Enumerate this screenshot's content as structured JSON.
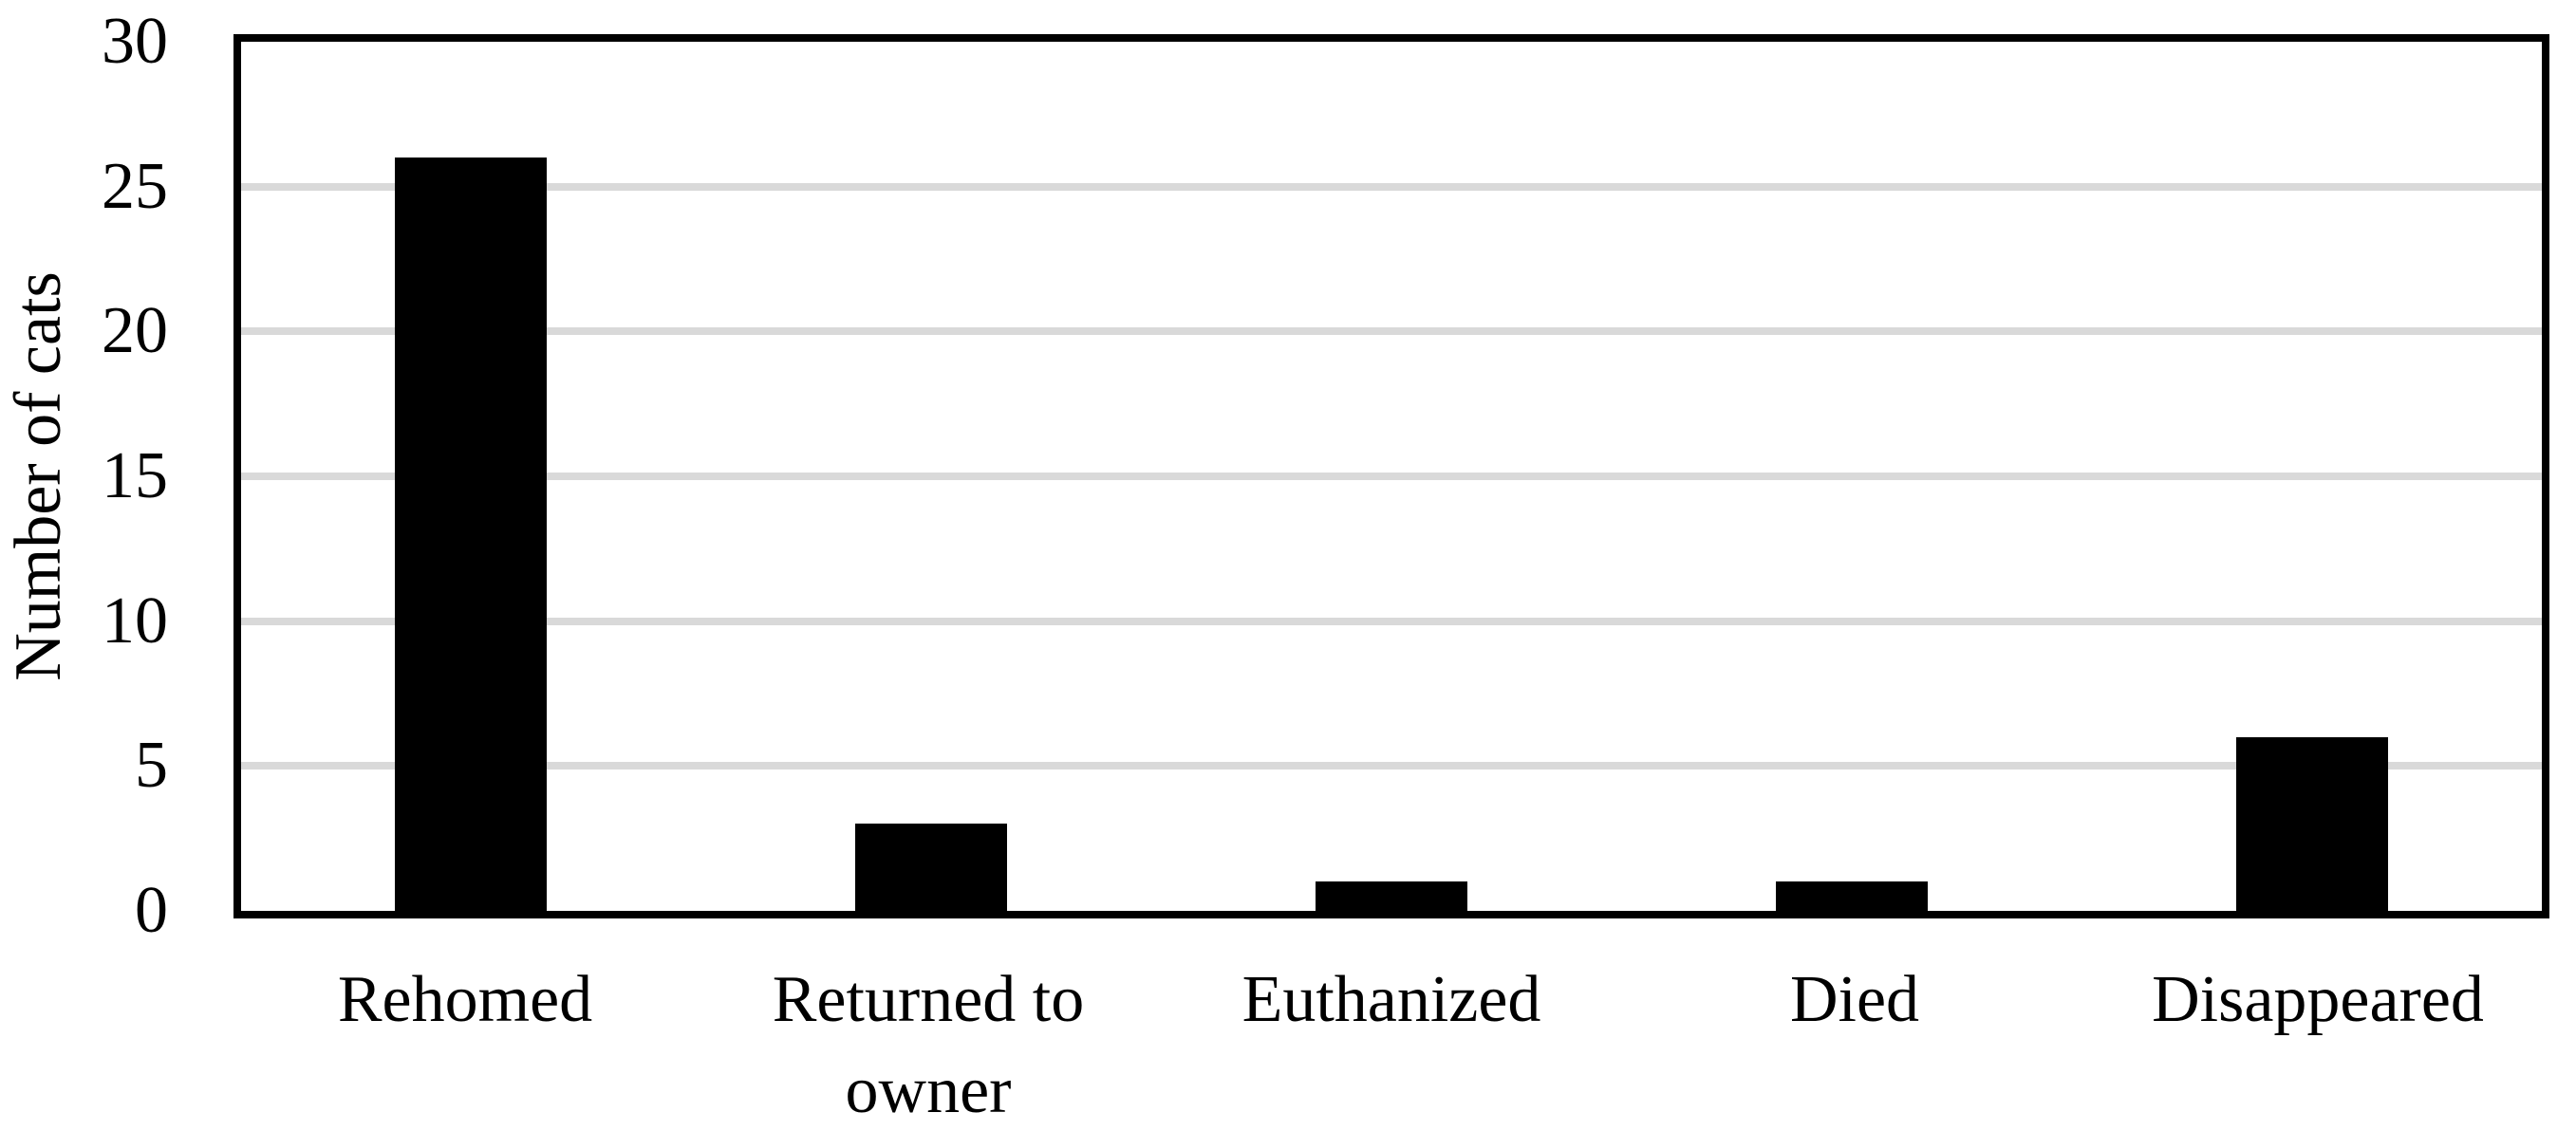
{
  "chart_data": {
    "type": "bar",
    "ylabel": "Number of cats",
    "categories": [
      "Rehomed",
      "Returned to owner",
      "Euthanized",
      "Died",
      "Disappeared"
    ],
    "values": [
      26,
      3,
      1,
      1,
      6
    ],
    "ylim": [
      0,
      30
    ],
    "yticks": [
      0,
      5,
      10,
      15,
      20,
      25,
      30
    ],
    "grid": "horizontal",
    "legend_position": "none",
    "colors": {
      "bar": "#000000",
      "gridline": "#d9d9d9",
      "axis_border": "#000000",
      "text": "#000000",
      "background": "#ffffff"
    }
  }
}
